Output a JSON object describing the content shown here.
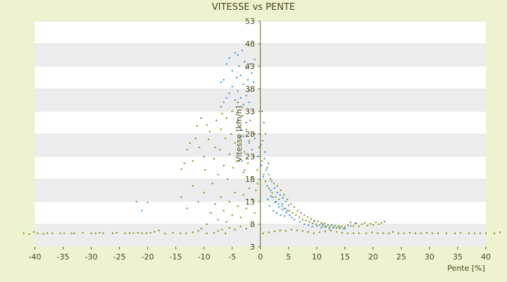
{
  "chart_data": {
    "type": "scatter",
    "title": "VITESSE vs PENTE",
    "xlabel": "Pente [%]",
    "ylabel": "Vitesse [km/h]",
    "xlim": [
      -40,
      40
    ],
    "ylim": [
      3,
      53
    ],
    "xticks": [
      "-40",
      "-35",
      "-30",
      "-25",
      "-20",
      "-15",
      "-10",
      "-5",
      "0",
      "5",
      "10",
      "15",
      "20",
      "25",
      "30",
      "35",
      "40"
    ],
    "yticks": [
      "3",
      "8",
      "13",
      "18",
      "23",
      "28",
      "33",
      "38",
      "43",
      "48",
      "53"
    ],
    "grid": "horizontal bands",
    "colors": {
      "background": "#eef2d0",
      "band": "#ececec",
      "axis": "#5a6a1a",
      "series1": "#7a8a10",
      "series2": "#2f8fe0"
    },
    "series": [
      {
        "points": [
          [
            -42.0,
            6.0
          ],
          [
            -41.0,
            5.8
          ],
          [
            -40.2,
            6.3
          ],
          [
            -39.5,
            6.0
          ],
          [
            -38.5,
            5.9
          ],
          [
            -37.8,
            6.0
          ],
          [
            -36.9,
            6.0
          ],
          [
            -35.5,
            6.0
          ],
          [
            -34.8,
            6.0
          ],
          [
            -33.5,
            6.0
          ],
          [
            -33.0,
            6.0
          ],
          [
            -31.5,
            6.1
          ],
          [
            -30.0,
            6.0
          ],
          [
            -29.2,
            6.0
          ],
          [
            -28.5,
            6.1
          ],
          [
            -27.9,
            6.0
          ],
          [
            -26.2,
            6.0
          ],
          [
            -25.5,
            6.1
          ],
          [
            -24.0,
            6.0
          ],
          [
            -23.2,
            6.0
          ],
          [
            -22.5,
            6.0
          ],
          [
            -21.7,
            6.1
          ],
          [
            -21.0,
            6.0
          ],
          [
            -20.2,
            6.0
          ],
          [
            -19.5,
            6.1
          ],
          [
            -18.8,
            6.3
          ],
          [
            -18.0,
            6.6
          ],
          [
            -16.9,
            5.9
          ],
          [
            -15.5,
            6.1
          ],
          [
            -14.2,
            6.0
          ],
          [
            -13.2,
            6.0
          ],
          [
            -12.0,
            6.2
          ],
          [
            -11.0,
            6.5
          ],
          [
            -10.5,
            7.0
          ],
          [
            -9.5,
            6.0
          ],
          [
            -8.2,
            6.1
          ],
          [
            -7.5,
            6.5
          ],
          [
            -6.2,
            6.0
          ],
          [
            -14.0,
            20.2
          ],
          [
            -13.5,
            21.5
          ],
          [
            -13.0,
            24.5
          ],
          [
            -12.5,
            26.0
          ],
          [
            -12.0,
            22.0
          ],
          [
            -11.5,
            27.0
          ],
          [
            -11.2,
            29.8
          ],
          [
            -10.8,
            25.0
          ],
          [
            -10.5,
            31.5
          ],
          [
            -10.0,
            23.0
          ],
          [
            -9.8,
            20.0
          ],
          [
            -9.5,
            30.0
          ],
          [
            -9.2,
            26.8
          ],
          [
            -9.0,
            28.5
          ],
          [
            -8.5,
            17.0
          ],
          [
            -8.2,
            22.5
          ],
          [
            -8.0,
            25.0
          ],
          [
            -7.8,
            31.0
          ],
          [
            -7.5,
            19.0
          ],
          [
            -7.2,
            24.5
          ],
          [
            -7.0,
            29.0
          ],
          [
            -6.8,
            32.5
          ],
          [
            -6.5,
            21.0
          ],
          [
            -6.2,
            27.0
          ],
          [
            -6.0,
            31.5
          ],
          [
            -5.8,
            18.0
          ],
          [
            -5.5,
            23.5
          ],
          [
            -5.2,
            28.0
          ],
          [
            -5.0,
            33.0
          ],
          [
            -4.8,
            20.5
          ],
          [
            -4.5,
            26.0
          ],
          [
            -4.2,
            30.5
          ],
          [
            -4.0,
            35.0
          ],
          [
            -3.8,
            22.0
          ],
          [
            -3.5,
            27.5
          ],
          [
            -3.2,
            32.0
          ],
          [
            -3.0,
            19.5
          ],
          [
            -2.8,
            24.0
          ],
          [
            -2.5,
            29.0
          ],
          [
            -2.2,
            21.5
          ],
          [
            -2.0,
            26.5
          ],
          [
            -1.8,
            31.0
          ],
          [
            -1.5,
            18.5
          ],
          [
            -1.2,
            23.0
          ],
          [
            -1.0,
            28.0
          ],
          [
            -0.8,
            15.5
          ],
          [
            -0.5,
            20.0
          ],
          [
            -0.2,
            25.0
          ],
          [
            -8.8,
            10.5
          ],
          [
            -8.0,
            12.5
          ],
          [
            -7.5,
            9.0
          ],
          [
            -7.0,
            14.0
          ],
          [
            -6.5,
            11.0
          ],
          [
            -6.0,
            8.5
          ],
          [
            -5.5,
            13.0
          ],
          [
            -5.0,
            10.0
          ],
          [
            -4.5,
            15.0
          ],
          [
            -4.0,
            12.0
          ],
          [
            -3.5,
            9.5
          ],
          [
            -3.0,
            14.5
          ],
          [
            -2.5,
            11.5
          ],
          [
            -2.0,
            16.0
          ],
          [
            -1.5,
            13.5
          ],
          [
            -1.0,
            10.5
          ],
          [
            -0.5,
            17.0
          ],
          [
            -10.0,
            15.0
          ],
          [
            -11.0,
            13.0
          ],
          [
            -12.0,
            16.5
          ],
          [
            -13.0,
            11.5
          ],
          [
            -14.0,
            14.0
          ],
          [
            -9.5,
            8.0
          ],
          [
            -6.8,
            6.8
          ],
          [
            -5.5,
            7.2
          ],
          [
            -4.5,
            6.8
          ],
          [
            -3.5,
            7.5
          ],
          [
            -2.5,
            7.0
          ],
          [
            0.3,
            22.0
          ],
          [
            0.6,
            19.0
          ],
          [
            0.9,
            17.5
          ],
          [
            1.2,
            20.5
          ],
          [
            1.5,
            16.0
          ],
          [
            1.8,
            18.0
          ],
          [
            2.1,
            15.0
          ],
          [
            2.4,
            17.0
          ],
          [
            2.7,
            14.0
          ],
          [
            3.0,
            16.5
          ],
          [
            3.3,
            13.5
          ],
          [
            3.6,
            15.5
          ],
          [
            3.9,
            12.5
          ],
          [
            4.2,
            14.5
          ],
          [
            4.5,
            11.5
          ],
          [
            4.8,
            13.5
          ],
          [
            5.1,
            11.0
          ],
          [
            5.4,
            12.5
          ],
          [
            5.7,
            10.5
          ],
          [
            6.0,
            11.8
          ],
          [
            6.3,
            10.0
          ],
          [
            6.6,
            11.0
          ],
          [
            6.9,
            9.5
          ],
          [
            7.2,
            10.5
          ],
          [
            7.5,
            9.0
          ],
          [
            7.8,
            10.0
          ],
          [
            8.1,
            8.8
          ],
          [
            8.4,
            9.6
          ],
          [
            8.7,
            8.5
          ],
          [
            9.0,
            9.2
          ],
          [
            9.3,
            8.2
          ],
          [
            9.6,
            8.8
          ],
          [
            9.9,
            8.0
          ],
          [
            10.2,
            8.6
          ],
          [
            10.5,
            7.8
          ],
          [
            10.8,
            8.3
          ],
          [
            11.1,
            7.6
          ],
          [
            11.4,
            8.1
          ],
          [
            11.7,
            7.5
          ],
          [
            12.0,
            7.9
          ],
          [
            12.3,
            7.4
          ],
          [
            12.6,
            7.8
          ],
          [
            12.9,
            7.3
          ],
          [
            13.2,
            7.7
          ],
          [
            13.5,
            7.2
          ],
          [
            13.8,
            7.6
          ],
          [
            14.1,
            7.1
          ],
          [
            14.4,
            7.5
          ],
          [
            14.7,
            7.0
          ],
          [
            15.0,
            7.4
          ],
          [
            15.5,
            7.8
          ],
          [
            16.0,
            8.4
          ],
          [
            16.5,
            7.6
          ],
          [
            17.0,
            8.2
          ],
          [
            17.5,
            7.5
          ],
          [
            18.0,
            8.0
          ],
          [
            18.5,
            8.3
          ],
          [
            19.0,
            7.7
          ],
          [
            19.5,
            8.1
          ],
          [
            20.0,
            7.9
          ],
          [
            20.5,
            8.4
          ],
          [
            21.0,
            8.0
          ],
          [
            21.5,
            8.3
          ],
          [
            22.0,
            8.6
          ],
          [
            0.5,
            6.0
          ],
          [
            1.5,
            6.2
          ],
          [
            2.5,
            6.4
          ],
          [
            3.5,
            6.6
          ],
          [
            4.5,
            6.5
          ],
          [
            5.5,
            6.8
          ],
          [
            6.5,
            6.6
          ],
          [
            7.5,
            6.5
          ],
          [
            8.5,
            6.3
          ],
          [
            9.5,
            6.0
          ],
          [
            10.5,
            6.2
          ],
          [
            11.5,
            6.4
          ],
          [
            12.5,
            6.6
          ],
          [
            13.5,
            6.3
          ],
          [
            14.5,
            6.1
          ],
          [
            15.5,
            6.0
          ],
          [
            16.5,
            6.0
          ],
          [
            17.5,
            6.0
          ],
          [
            18.8,
            6.0
          ],
          [
            19.8,
            6.2
          ],
          [
            20.8,
            6.0
          ],
          [
            21.8,
            6.0
          ],
          [
            22.8,
            6.0
          ],
          [
            23.5,
            6.3
          ],
          [
            24.5,
            6.0
          ],
          [
            25.5,
            6.0
          ],
          [
            26.5,
            6.1
          ],
          [
            27.5,
            6.0
          ],
          [
            28.5,
            6.0
          ],
          [
            29.5,
            6.1
          ],
          [
            30.5,
            6.0
          ],
          [
            31.5,
            6.0
          ],
          [
            33.0,
            6.0
          ],
          [
            34.5,
            6.0
          ],
          [
            35.5,
            6.1
          ],
          [
            37.0,
            6.0
          ],
          [
            38.0,
            6.0
          ],
          [
            39.0,
            6.0
          ],
          [
            40.0,
            6.0
          ],
          [
            41.5,
            6.0
          ],
          [
            42.5,
            6.2
          ]
        ]
      },
      {
        "points": [
          [
            -22.0,
            13.0
          ],
          [
            -20.0,
            12.8
          ],
          [
            -21.0,
            11.0
          ],
          [
            -6.0,
            43.5
          ],
          [
            -5.5,
            44.8
          ],
          [
            -5.0,
            42.0
          ],
          [
            -4.5,
            46.0
          ],
          [
            -4.2,
            40.5
          ],
          [
            -4.0,
            45.5
          ],
          [
            -3.8,
            43.0
          ],
          [
            -3.5,
            41.0
          ],
          [
            -3.2,
            46.5
          ],
          [
            -3.0,
            39.0
          ],
          [
            -2.8,
            44.0
          ],
          [
            -2.5,
            42.5
          ],
          [
            -2.2,
            40.0
          ],
          [
            -2.0,
            37.5
          ],
          [
            -1.8,
            43.5
          ],
          [
            -1.5,
            41.5
          ],
          [
            -1.2,
            39.5
          ],
          [
            -1.0,
            44.5
          ],
          [
            -6.5,
            40.0
          ],
          [
            -7.0,
            39.5
          ],
          [
            -5.5,
            37.0
          ],
          [
            -5.0,
            38.5
          ],
          [
            -4.5,
            35.5
          ],
          [
            -4.0,
            37.5
          ],
          [
            -3.5,
            36.0
          ],
          [
            -3.0,
            34.5
          ],
          [
            -2.5,
            36.5
          ],
          [
            -2.0,
            35.0
          ],
          [
            -6.0,
            36.0
          ],
          [
            -7.0,
            34.0
          ],
          [
            -6.5,
            35.0
          ],
          [
            -4.0,
            31.0
          ],
          [
            -3.5,
            29.0
          ],
          [
            -3.0,
            27.5
          ],
          [
            -2.5,
            30.5
          ],
          [
            -2.0,
            26.0
          ],
          [
            -1.5,
            24.5
          ],
          [
            -1.0,
            27.0
          ],
          [
            -0.5,
            23.0
          ],
          [
            -3.2,
            22.0
          ],
          [
            -2.8,
            20.0
          ],
          [
            0.2,
            21.0
          ],
          [
            0.5,
            18.5
          ],
          [
            0.8,
            24.0
          ],
          [
            1.0,
            20.0
          ],
          [
            1.2,
            16.5
          ],
          [
            1.5,
            19.0
          ],
          [
            1.8,
            15.5
          ],
          [
            2.0,
            17.5
          ],
          [
            2.2,
            14.0
          ],
          [
            2.5,
            16.0
          ],
          [
            2.8,
            13.0
          ],
          [
            3.0,
            15.0
          ],
          [
            3.2,
            12.5
          ],
          [
            3.5,
            14.5
          ],
          [
            3.8,
            12.0
          ],
          [
            4.0,
            13.8
          ],
          [
            4.2,
            11.5
          ],
          [
            4.5,
            13.0
          ],
          [
            4.8,
            11.0
          ],
          [
            5.0,
            12.2
          ],
          [
            1.3,
            13.5
          ],
          [
            1.6,
            12.0
          ],
          [
            1.9,
            14.2
          ],
          [
            2.3,
            11.0
          ],
          [
            2.6,
            12.8
          ],
          [
            2.9,
            10.5
          ],
          [
            3.3,
            11.8
          ],
          [
            3.6,
            10.0
          ],
          [
            3.9,
            11.2
          ],
          [
            4.3,
            9.8
          ],
          [
            4.6,
            10.6
          ],
          [
            5.2,
            10.0
          ],
          [
            5.6,
            9.5
          ],
          [
            6.0,
            9.0
          ],
          [
            0.9,
            28.0
          ],
          [
            0.6,
            30.5
          ],
          [
            0.3,
            33.0
          ],
          [
            0.1,
            25.5
          ],
          [
            0.4,
            26.5
          ],
          [
            0.7,
            22.5
          ],
          [
            1.4,
            21.5
          ],
          [
            7.0,
            8.5
          ],
          [
            7.8,
            8.0
          ],
          [
            8.5,
            7.8
          ],
          [
            9.2,
            7.5
          ],
          [
            10.0,
            7.6
          ],
          [
            10.8,
            7.2
          ],
          [
            11.5,
            7.4
          ],
          [
            12.2,
            7.0
          ],
          [
            13.0,
            7.2
          ],
          [
            14.0,
            7.3
          ],
          [
            15.0,
            7.0
          ],
          [
            16.0,
            7.6
          ],
          [
            16.8,
            8.2
          ],
          [
            9.6,
            8.6
          ],
          [
            11.0,
            8.0
          ],
          [
            12.6,
            7.9
          ]
        ]
      }
    ]
  }
}
